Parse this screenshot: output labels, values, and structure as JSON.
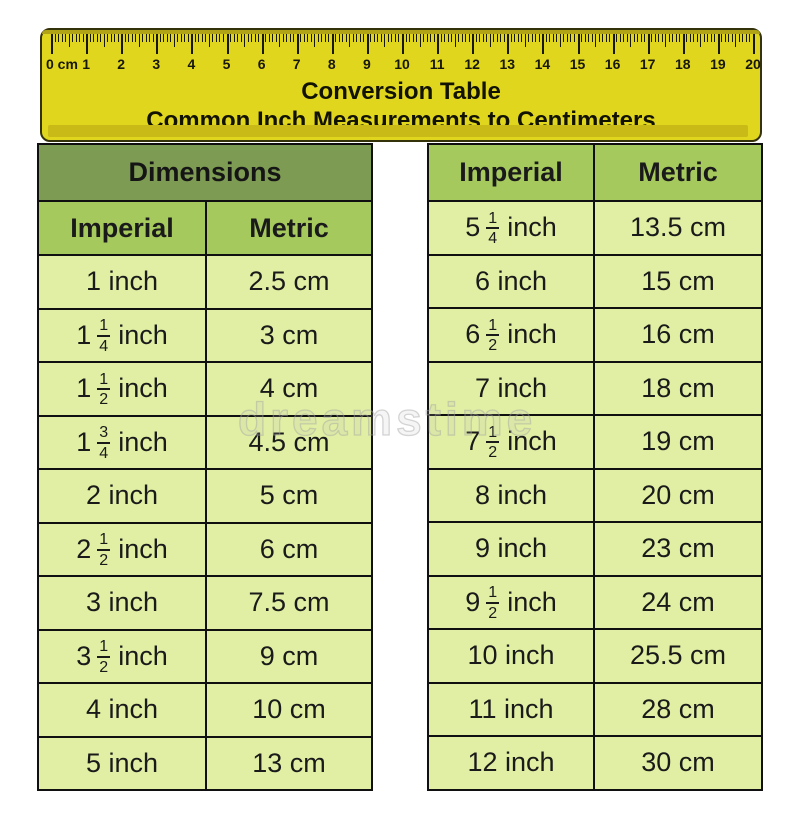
{
  "ruler": {
    "title_line1": "Conversion Table",
    "title_line2": "Common Inch Measurements to Centimeters",
    "labels": [
      "0 cm",
      "1",
      "2",
      "3",
      "4",
      "5",
      "6",
      "7",
      "8",
      "9",
      "10",
      "11",
      "12",
      "13",
      "14",
      "15",
      "16",
      "17",
      "18",
      "19",
      "20"
    ],
    "colors": {
      "body": "#e1d61e",
      "top_band": "#b0a316",
      "bottom_strip": "#c9ba18",
      "tick": "#181808"
    }
  },
  "tables": {
    "left": {
      "group_header": "Dimensions",
      "columns": [
        "Imperial",
        "Metric"
      ],
      "rows": [
        {
          "whole": "1",
          "num": "",
          "den": "",
          "unit": "inch",
          "metric": "2.5 cm"
        },
        {
          "whole": "1",
          "num": "1",
          "den": "4",
          "unit": "inch",
          "metric": "3 cm"
        },
        {
          "whole": "1",
          "num": "1",
          "den": "2",
          "unit": "inch",
          "metric": "4 cm"
        },
        {
          "whole": "1",
          "num": "3",
          "den": "4",
          "unit": "inch",
          "metric": "4.5 cm"
        },
        {
          "whole": "2",
          "num": "",
          "den": "",
          "unit": "inch",
          "metric": "5 cm"
        },
        {
          "whole": "2",
          "num": "1",
          "den": "2",
          "unit": "inch",
          "metric": "6 cm"
        },
        {
          "whole": "3",
          "num": "",
          "den": "",
          "unit": "inch",
          "metric": "7.5 cm"
        },
        {
          "whole": "3",
          "num": "1",
          "den": "2",
          "unit": "inch",
          "metric": "9 cm"
        },
        {
          "whole": "4",
          "num": "",
          "den": "",
          "unit": "inch",
          "metric": "10 cm"
        },
        {
          "whole": "5",
          "num": "",
          "den": "",
          "unit": "inch",
          "metric": "13 cm"
        }
      ]
    },
    "right": {
      "columns": [
        "Imperial",
        "Metric"
      ],
      "rows": [
        {
          "whole": "5",
          "num": "1",
          "den": "4",
          "unit": "inch",
          "metric": "13.5 cm"
        },
        {
          "whole": "6",
          "num": "",
          "den": "",
          "unit": "inch",
          "metric": "15 cm"
        },
        {
          "whole": "6",
          "num": "1",
          "den": "2",
          "unit": "inch",
          "metric": "16 cm"
        },
        {
          "whole": "7",
          "num": "",
          "den": "",
          "unit": "inch",
          "metric": "18 cm"
        },
        {
          "whole": "7",
          "num": "1",
          "den": "2",
          "unit": "inch",
          "metric": "19 cm"
        },
        {
          "whole": "8",
          "num": "",
          "den": "",
          "unit": "inch",
          "metric": "20 cm"
        },
        {
          "whole": "9",
          "num": "",
          "den": "",
          "unit": "inch",
          "metric": "23 cm"
        },
        {
          "whole": "9",
          "num": "1",
          "den": "2",
          "unit": "inch",
          "metric": "24 cm"
        },
        {
          "whole": "10",
          "num": "",
          "den": "",
          "unit": "inch",
          "metric": "25.5 cm"
        },
        {
          "whole": "11",
          "num": "",
          "den": "",
          "unit": "inch",
          "metric": "28 cm"
        },
        {
          "whole": "12",
          "num": "",
          "den": "",
          "unit": "inch",
          "metric": "30 cm"
        }
      ]
    }
  },
  "watermark": {
    "text": "dreamstime"
  },
  "colors": {
    "group_header_green": "#7d9b52",
    "column_header_green": "#a6c95e",
    "cell_green": "#e0efa3",
    "table_border": "#101010"
  },
  "chart_data": {
    "type": "table",
    "title": "Conversion Table",
    "subtitle": "Common Inch Measurements to Centimeters",
    "columns": [
      "Imperial",
      "Metric"
    ],
    "rows": [
      [
        "1 inch",
        "2.5 cm"
      ],
      [
        "1 1/4 inch",
        "3 cm"
      ],
      [
        "1 1/2 inch",
        "4 cm"
      ],
      [
        "1 3/4 inch",
        "4.5 cm"
      ],
      [
        "2 inch",
        "5 cm"
      ],
      [
        "2 1/2 inch",
        "6 cm"
      ],
      [
        "3 inch",
        "7.5 cm"
      ],
      [
        "3 1/2 inch",
        "9 cm"
      ],
      [
        "4 inch",
        "10 cm"
      ],
      [
        "5 inch",
        "13 cm"
      ],
      [
        "5 1/4 inch",
        "13.5 cm"
      ],
      [
        "6 inch",
        "15 cm"
      ],
      [
        "6 1/2 inch",
        "16 cm"
      ],
      [
        "7 inch",
        "18 cm"
      ],
      [
        "7 1/2 inch",
        "19 cm"
      ],
      [
        "8 inch",
        "20 cm"
      ],
      [
        "9 inch",
        "23 cm"
      ],
      [
        "9 1/2 inch",
        "24 cm"
      ],
      [
        "10 inch",
        "25.5 cm"
      ],
      [
        "11 inch",
        "28 cm"
      ],
      [
        "12 inch",
        "30 cm"
      ]
    ],
    "ruler_scale_cm": [
      0,
      20
    ]
  }
}
